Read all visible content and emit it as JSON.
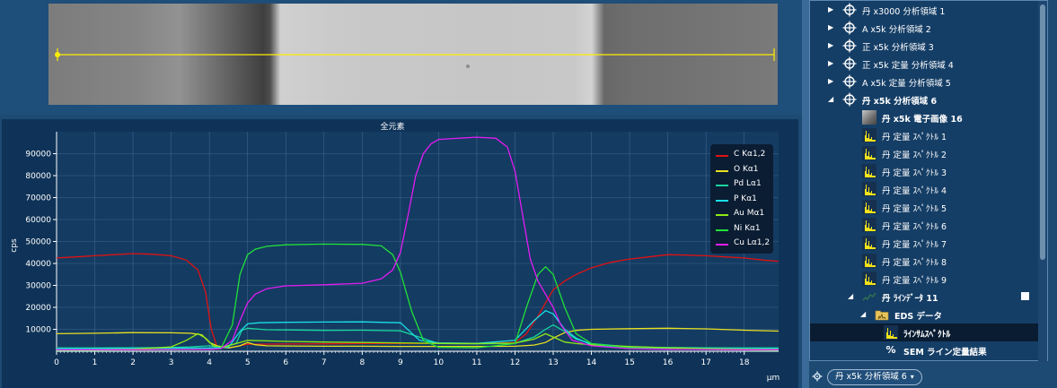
{
  "chart_data": {
    "type": "line",
    "title": "全元素",
    "xlabel": "μm",
    "ylabel": "cps",
    "xlim": [
      0,
      18.9
    ],
    "ylim": [
      0,
      100000
    ],
    "x_ticks": [
      0,
      1,
      2,
      3,
      4,
      5,
      6,
      7,
      8,
      9,
      10,
      11,
      12,
      13,
      14,
      15,
      16,
      17,
      18
    ],
    "y_ticks": [
      10000,
      20000,
      30000,
      40000,
      50000,
      60000,
      70000,
      80000,
      90000
    ],
    "grid": true,
    "legend_position": "top-right",
    "series": [
      {
        "name": "C Kα1,2",
        "color": "#e01212",
        "x": [
          0,
          0.5,
          1,
          1.5,
          2,
          2.5,
          3,
          3.4,
          3.7,
          3.9,
          4.05,
          4.2,
          4.4,
          4.6,
          4.8,
          5,
          6,
          7,
          8,
          9,
          10,
          11,
          12,
          12.3,
          12.6,
          12.8,
          13,
          13.3,
          13.6,
          14,
          14.5,
          15,
          15.5,
          16,
          16.5,
          17,
          17.5,
          18,
          18.5,
          18.9
        ],
        "values": [
          42500,
          43000,
          43500,
          44000,
          44500,
          44200,
          43500,
          41500,
          37000,
          27000,
          10000,
          2000,
          1500,
          1800,
          2500,
          3200,
          3300,
          3400,
          3500,
          3500,
          3500,
          3400,
          4000,
          8000,
          16000,
          22000,
          28000,
          32000,
          35000,
          38000,
          40500,
          42000,
          43000,
          44000,
          43800,
          43500,
          43000,
          42500,
          41500,
          41000
        ]
      },
      {
        "name": "O Kα1",
        "color": "#e8e020",
        "x": [
          0,
          1,
          2,
          3,
          3.5,
          3.8,
          4.0,
          4.2,
          4.5,
          4.8,
          5.0,
          5.2,
          5.5,
          6,
          7,
          8,
          9,
          10,
          11,
          12,
          12.5,
          12.8,
          13.0,
          13.3,
          13.6,
          14,
          15,
          16,
          17,
          18,
          18.9
        ],
        "values": [
          8000,
          8200,
          8500,
          8400,
          8200,
          7500,
          4000,
          2500,
          1500,
          2500,
          4000,
          3000,
          2500,
          2400,
          2300,
          2300,
          2200,
          2200,
          2200,
          2300,
          2800,
          4000,
          6000,
          8500,
          9500,
          10000,
          10300,
          10500,
          10200,
          9600,
          9200
        ]
      },
      {
        "name": "Pd Lα1",
        "color": "#19d49e",
        "x": [
          0,
          1,
          2,
          3,
          3.5,
          4,
          4.3,
          4.7,
          4.85,
          5.0,
          5.5,
          6,
          7,
          8,
          9,
          10,
          11,
          12,
          12.5,
          12.8,
          13.0,
          13.3,
          13.6,
          14,
          15,
          16,
          17,
          18,
          18.9
        ],
        "values": [
          1500,
          1500,
          1600,
          1700,
          2000,
          2500,
          1800,
          3500,
          9500,
          10500,
          9800,
          9700,
          9500,
          9600,
          9300,
          3500,
          3400,
          3600,
          6500,
          10000,
          12000,
          9000,
          5500,
          3500,
          2000,
          1700,
          1600,
          1500,
          1500
        ]
      },
      {
        "name": "P Kα1",
        "color": "#18e0e8",
        "x": [
          0,
          1,
          2,
          3,
          4,
          4.5,
          4.8,
          5.0,
          5.3,
          6,
          7,
          8,
          9,
          9.5,
          10,
          11,
          12,
          12.5,
          12.8,
          13.0,
          13.3,
          13.6,
          14,
          15,
          16,
          17,
          18,
          18.9
        ],
        "values": [
          1200,
          1200,
          1300,
          1400,
          1500,
          1800,
          9000,
          12500,
          13000,
          13200,
          13300,
          13400,
          13000,
          5000,
          3800,
          3600,
          5000,
          14000,
          18500,
          17000,
          10000,
          6000,
          3000,
          1600,
          1400,
          1300,
          1200,
          1200
        ]
      },
      {
        "name": "Au Mα1",
        "color": "#8eea16",
        "x": [
          0,
          1,
          2,
          3,
          3.4,
          3.7,
          3.9,
          4.1,
          4.4,
          4.7,
          5.0,
          6,
          7,
          8,
          9,
          10,
          11,
          12,
          12.5,
          12.8,
          13.0,
          13.3,
          13.6,
          14,
          15,
          16,
          17,
          18,
          18.9
        ],
        "values": [
          600,
          700,
          900,
          2000,
          5000,
          8000,
          6000,
          2500,
          2000,
          3500,
          5000,
          4500,
          4200,
          4000,
          3800,
          3600,
          3500,
          3700,
          5500,
          8000,
          6500,
          4200,
          3500,
          3000,
          2200,
          1600,
          1200,
          900,
          800
        ]
      },
      {
        "name": "Ni Kα1",
        "color": "#22e03a",
        "x": [
          0,
          1,
          2,
          3,
          4,
          4.3,
          4.6,
          4.8,
          5.0,
          5.2,
          5.5,
          6,
          7,
          8,
          8.5,
          8.8,
          9.0,
          9.3,
          9.6,
          10,
          11,
          12,
          12.3,
          12.6,
          12.8,
          13.0,
          13.3,
          13.6,
          14,
          15,
          16,
          17,
          18,
          18.9
        ],
        "values": [
          500,
          500,
          600,
          700,
          900,
          1200,
          12000,
          35000,
          44000,
          46500,
          47800,
          48500,
          48800,
          48700,
          48000,
          44000,
          36000,
          18000,
          5000,
          1800,
          1600,
          3500,
          20000,
          35000,
          38500,
          35000,
          20000,
          8000,
          3500,
          1500,
          1000,
          800,
          600,
          500
        ]
      },
      {
        "name": "Cu Lα1,2",
        "color": "#e21cf2",
        "x": [
          0,
          1,
          2,
          3,
          4,
          4.3,
          4.6,
          4.8,
          5.0,
          5.2,
          5.5,
          6,
          7,
          8,
          8.5,
          8.8,
          9.0,
          9.2,
          9.4,
          9.6,
          9.8,
          10,
          10.5,
          11,
          11.5,
          11.8,
          12,
          12.2,
          12.4,
          12.6,
          12.8,
          13.0,
          13.2,
          13.5,
          14,
          15,
          16,
          17,
          18,
          18.9
        ],
        "values": [
          700,
          700,
          700,
          800,
          900,
          1200,
          5000,
          14000,
          22000,
          26000,
          28500,
          29800,
          30300,
          31000,
          33000,
          37000,
          45000,
          62000,
          80000,
          90000,
          94500,
          96500,
          97000,
          97500,
          97000,
          93000,
          82000,
          62000,
          42000,
          32000,
          26000,
          20000,
          12000,
          5000,
          2500,
          1200,
          900,
          800,
          700,
          700
        ]
      }
    ]
  },
  "tree": {
    "items": [
      {
        "label": "丹 x3000 分析領域 1",
        "bold": false
      },
      {
        "label": "A x5k 分析領域 2",
        "bold": false
      },
      {
        "label": "正 x5k 分析領域 3",
        "bold": false
      },
      {
        "label": "正 x5k 定量 分析領域 4",
        "bold": false
      },
      {
        "label": "A x5k 定量 分析領域 5",
        "bold": false
      },
      {
        "label": "丹 x5k 分析領域 6",
        "bold": true
      },
      {
        "label": "丹 x5k 電子画像 16",
        "bold": true
      },
      {
        "label": "丹 定量 ｽﾍﾟｸﾄﾙ 1",
        "bold": false
      },
      {
        "label": "丹 定量 ｽﾍﾟｸﾄﾙ 2",
        "bold": false
      },
      {
        "label": "丹 定量 ｽﾍﾟｸﾄﾙ 3",
        "bold": false
      },
      {
        "label": "丹 定量 ｽﾍﾟｸﾄﾙ 4",
        "bold": false
      },
      {
        "label": "丹 定量 ｽﾍﾟｸﾄﾙ 5",
        "bold": false
      },
      {
        "label": "丹 定量 ｽﾍﾟｸﾄﾙ 6",
        "bold": false
      },
      {
        "label": "丹 定量 ｽﾍﾟｸﾄﾙ 7",
        "bold": false
      },
      {
        "label": "丹 定量 ｽﾍﾟｸﾄﾙ 8",
        "bold": false
      },
      {
        "label": "丹 定量 ｽﾍﾟｸﾄﾙ 9",
        "bold": false
      },
      {
        "label": "丹 ﾗｲﾝﾃﾞｰﾀ 11",
        "bold": true
      },
      {
        "label": "EDS データ",
        "bold": true
      },
      {
        "label": "ﾗｲﾝｻﾑｽﾍﾟｸﾄﾙ",
        "bold": true
      },
      {
        "label": "SEM ライン定量結果",
        "bold": true
      }
    ]
  },
  "bottom_bar": {
    "site_selector": "丹 x5k 分析領域 6"
  }
}
